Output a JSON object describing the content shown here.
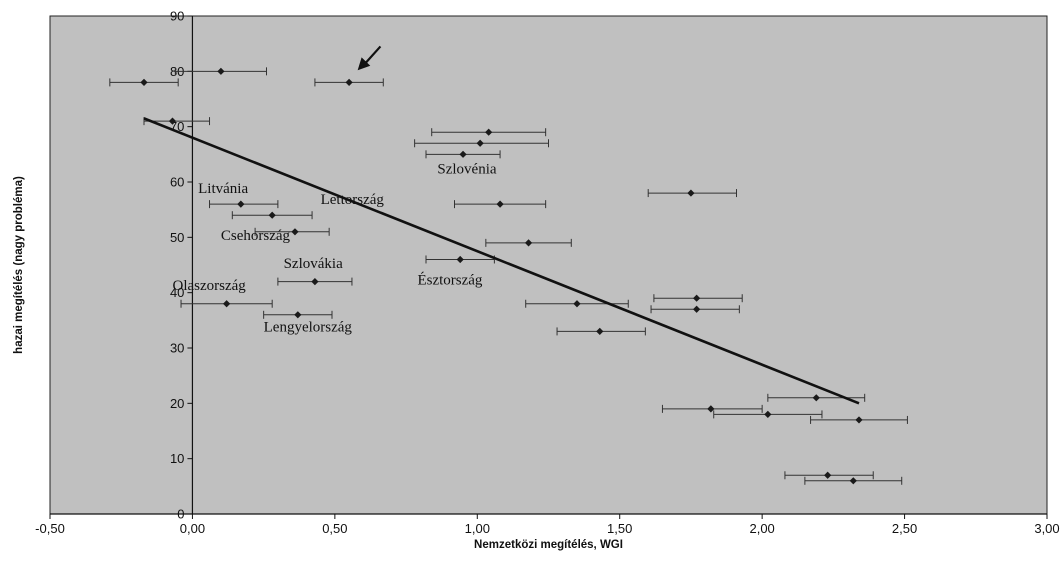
{
  "chart_data": {
    "type": "scatter",
    "title": "",
    "xlabel": "Nemzetközi megítélés, WGI",
    "ylabel": "hazai megítélés (nagy probléma)",
    "xlim": [
      -0.5,
      3.0
    ],
    "ylim": [
      0,
      90
    ],
    "x_ticks": [
      "-0,50",
      "0,00",
      "0,50",
      "1,00",
      "1,50",
      "2,00",
      "2,50",
      "3,00"
    ],
    "y_ticks": [
      "0",
      "10",
      "20",
      "30",
      "40",
      "50",
      "60",
      "70",
      "80",
      "90"
    ],
    "grid": false,
    "background_color": "#c0c0c0",
    "point_color": "#1a1a1a",
    "points": [
      {
        "x": -0.17,
        "y": 78,
        "xerr_low": -0.29,
        "xerr_high": -0.05
      },
      {
        "x": 0.1,
        "y": 80,
        "xerr_low": -0.06,
        "xerr_high": 0.26
      },
      {
        "x": 0.55,
        "y": 78,
        "xerr_low": 0.43,
        "xerr_high": 0.67
      },
      {
        "x": -0.07,
        "y": 71,
        "xerr_low": -0.17,
        "xerr_high": 0.06
      },
      {
        "x": 1.04,
        "y": 69,
        "xerr_low": 0.84,
        "xerr_high": 1.24
      },
      {
        "x": 1.01,
        "y": 67,
        "xerr_low": 0.78,
        "xerr_high": 1.25
      },
      {
        "x": 0.95,
        "y": 65,
        "xerr_low": 0.82,
        "xerr_high": 1.08
      },
      {
        "x": 1.75,
        "y": 58,
        "xerr_low": 1.6,
        "xerr_high": 1.91
      },
      {
        "x": 0.17,
        "y": 56,
        "xerr_low": 0.06,
        "xerr_high": 0.3
      },
      {
        "x": 0.28,
        "y": 54,
        "xerr_low": 0.14,
        "xerr_high": 0.42
      },
      {
        "x": 1.08,
        "y": 56,
        "xerr_low": 0.92,
        "xerr_high": 1.24
      },
      {
        "x": 0.36,
        "y": 51,
        "xerr_low": 0.22,
        "xerr_high": 0.48
      },
      {
        "x": 1.18,
        "y": 49,
        "xerr_low": 1.03,
        "xerr_high": 1.33
      },
      {
        "x": 0.94,
        "y": 46,
        "xerr_low": 0.82,
        "xerr_high": 1.06
      },
      {
        "x": 0.43,
        "y": 42,
        "xerr_low": 0.3,
        "xerr_high": 0.56
      },
      {
        "x": 1.77,
        "y": 39,
        "xerr_low": 1.62,
        "xerr_high": 1.93
      },
      {
        "x": 1.35,
        "y": 38,
        "xerr_low": 1.17,
        "xerr_high": 1.53
      },
      {
        "x": 0.12,
        "y": 38,
        "xerr_low": -0.04,
        "xerr_high": 0.28
      },
      {
        "x": 1.77,
        "y": 37,
        "xerr_low": 1.61,
        "xerr_high": 1.92
      },
      {
        "x": 0.37,
        "y": 36,
        "xerr_low": 0.25,
        "xerr_high": 0.49
      },
      {
        "x": 1.43,
        "y": 33,
        "xerr_low": 1.28,
        "xerr_high": 1.59
      },
      {
        "x": 2.19,
        "y": 21,
        "xerr_low": 2.02,
        "xerr_high": 2.36
      },
      {
        "x": 1.82,
        "y": 19,
        "xerr_low": 1.65,
        "xerr_high": 2.0
      },
      {
        "x": 2.02,
        "y": 18,
        "xerr_low": 1.83,
        "xerr_high": 2.21
      },
      {
        "x": 2.34,
        "y": 17,
        "xerr_low": 2.17,
        "xerr_high": 2.51
      },
      {
        "x": 2.23,
        "y": 7,
        "xerr_low": 2.08,
        "xerr_high": 2.39
      },
      {
        "x": 2.32,
        "y": 6,
        "xerr_low": 2.15,
        "xerr_high": 2.49
      }
    ],
    "trendline": {
      "x1": -0.17,
      "y1": 71.5,
      "x2": 2.34,
      "y2": 20
    },
    "arrow": {
      "x_from": 0.66,
      "y_from": 84.5,
      "x_to": 0.58,
      "y_to": 80.2
    },
    "annotations": [
      {
        "text": "Litvánia",
        "x": 0.02,
        "y": 58
      },
      {
        "text": "Lettország",
        "x": 0.45,
        "y": 56
      },
      {
        "text": "Csehország",
        "x": 0.1,
        "y": 49.5
      },
      {
        "text": "Szlovénia",
        "x": 0.86,
        "y": 61.5
      },
      {
        "text": "Szlovákia",
        "x": 0.32,
        "y": 44.5
      },
      {
        "text": "Észtország",
        "x": 0.79,
        "y": 41.5
      },
      {
        "text": "Olaszország",
        "x": -0.07,
        "y": 40.5
      },
      {
        "text": "Lengyelország",
        "x": 0.25,
        "y": 33
      }
    ]
  }
}
